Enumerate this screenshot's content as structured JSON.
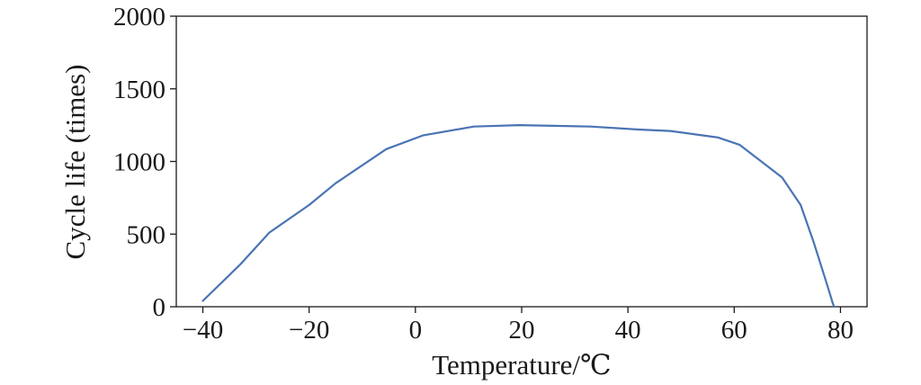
{
  "chart_data": {
    "type": "line",
    "title": "",
    "xlabel": "Temperature/℃",
    "ylabel": "Cycle life (times)",
    "xlim": [
      -45,
      85
    ],
    "ylim": [
      0,
      2000
    ],
    "xticks": [
      -40,
      -20,
      0,
      20,
      40,
      60,
      80
    ],
    "yticks": [
      0,
      500,
      1000,
      1500,
      2000
    ],
    "xtick_labels": [
      "−40",
      "−20",
      "0",
      "20",
      "40",
      "60",
      "80"
    ],
    "ytick_labels": [
      "0",
      "500",
      "1000",
      "1500",
      "2000"
    ],
    "grid": false,
    "legend": "none",
    "series": [
      {
        "color": "#4a74b4",
        "x": [
          -40,
          -33,
          -27.5,
          -20,
          -15,
          -5.5,
          1.5,
          11,
          19.5,
          33,
          42,
          48,
          57,
          61,
          69,
          72.5,
          75,
          77.5,
          78.5,
          78.8
        ],
        "y": [
          40,
          290,
          510,
          700,
          850,
          1085,
          1180,
          1240,
          1250,
          1240,
          1220,
          1210,
          1165,
          1115,
          890,
          700,
          440,
          150,
          30,
          0
        ]
      }
    ]
  }
}
